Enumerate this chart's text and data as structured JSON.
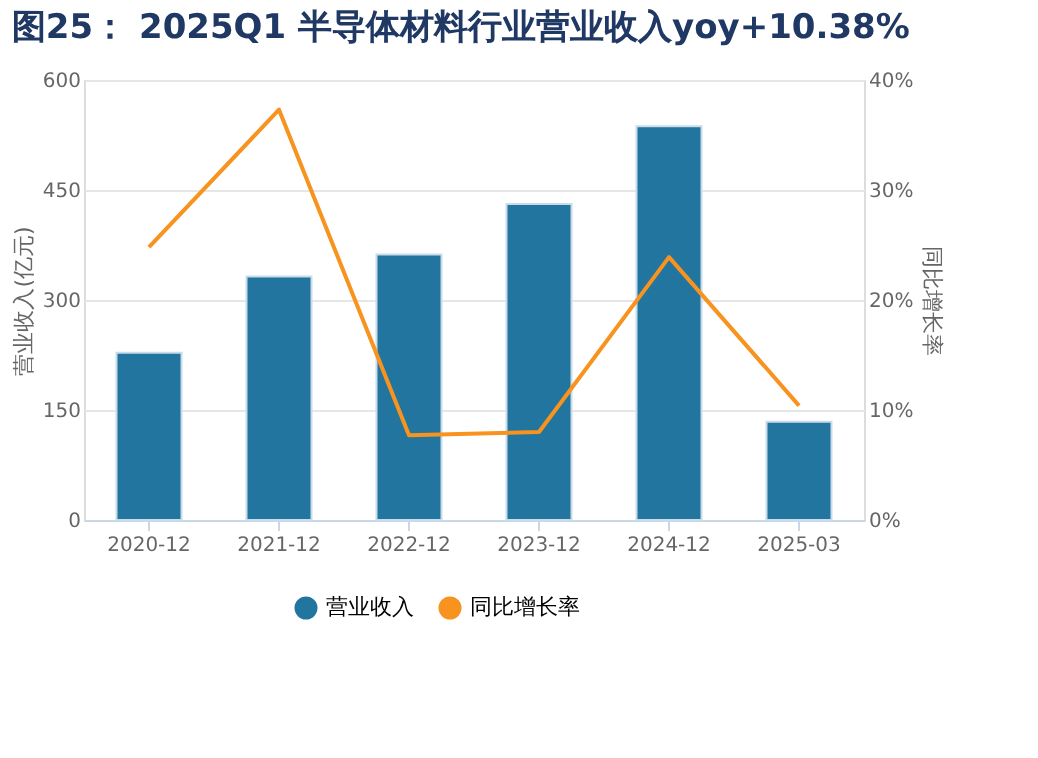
{
  "chart_data": {
    "type": "bar",
    "title": "图25： 2025Q1 半导体材料行业营业收入yoy+10.38%",
    "ylabel": "营业收入(亿元)",
    "y2label": "同比增长率",
    "categories": [
      "2020-12",
      "2021-12",
      "2022-12",
      "2023-12",
      "2024-12",
      "2025-03"
    ],
    "series": [
      {
        "name": "营业收入",
        "color": "#21759f",
        "values": [
          228,
          332,
          362,
          431,
          537,
          134
        ]
      },
      {
        "name": "同比增长率",
        "type": "line",
        "axis": "y2",
        "color": "#f7931e",
        "values": [
          24.8,
          37.3,
          7.7,
          8.0,
          23.9,
          10.4
        ]
      }
    ],
    "ylim": [
      0,
      600
    ],
    "yticks": [
      0,
      150,
      300,
      450,
      600
    ],
    "y2lim": [
      0,
      40
    ],
    "y2ticks": [
      {
        "value": 0,
        "label": "0%"
      },
      {
        "value": 10,
        "label": "10%"
      },
      {
        "value": 20,
        "label": "20%"
      },
      {
        "value": 30,
        "label": "30%"
      },
      {
        "value": 40,
        "label": "40%"
      }
    ],
    "grid": "y",
    "legend": "bottom",
    "marker": "none",
    "line_style": "solid"
  }
}
